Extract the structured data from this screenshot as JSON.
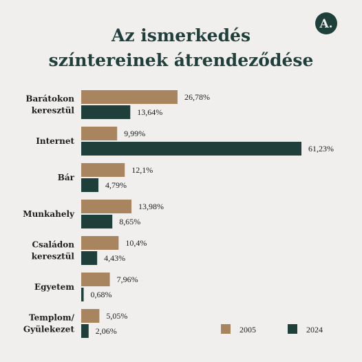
{
  "logo": "A.",
  "chart_data": {
    "type": "bar",
    "orientation": "horizontal",
    "title": [
      "Az ismerkedés",
      "színtereinek átrendeződése"
    ],
    "categories": [
      [
        "Barátokon",
        "keresztül"
      ],
      [
        "Internet"
      ],
      [
        "Bár"
      ],
      [
        "Munkahely"
      ],
      [
        "Családon",
        "keresztül"
      ],
      [
        "Egyetem"
      ],
      [
        "Templom/",
        "Gyülekezet"
      ]
    ],
    "series": [
      {
        "name": "2005",
        "color": "#a8845f",
        "values": [
          26.78,
          9.99,
          12.1,
          13.98,
          10.4,
          7.96,
          5.05
        ],
        "value_labels": [
          "26,78%",
          "9,99%",
          "12,1%",
          "13,98%",
          "10,4%",
          "7,96%",
          "5,05%"
        ]
      },
      {
        "name": "2024",
        "color": "#1f3f3a",
        "values": [
          13.64,
          61.23,
          4.79,
          8.65,
          4.43,
          0.68,
          2.06
        ],
        "value_labels": [
          "13,64%",
          "61,23%",
          "4,79%",
          "8,65%",
          "4,43%",
          "0,68%",
          "2,06%"
        ]
      }
    ],
    "legend": "bottom-right"
  }
}
